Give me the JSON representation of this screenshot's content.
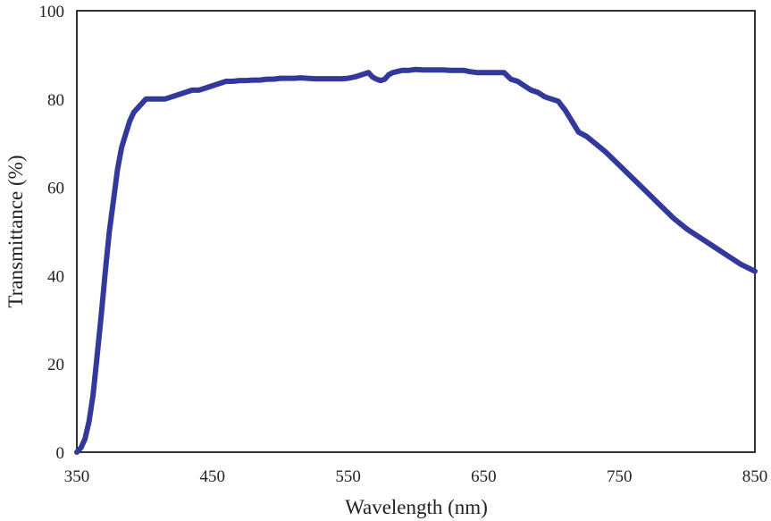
{
  "chart_data": {
    "type": "line",
    "title": "",
    "xlabel": "Wavelength  (nm)",
    "ylabel": "Transmittance  (%)",
    "xlim": [
      350,
      850
    ],
    "ylim": [
      0,
      100
    ],
    "xticks": [
      350,
      450,
      550,
      650,
      750,
      850
    ],
    "yticks": [
      0,
      20,
      40,
      60,
      80,
      100
    ],
    "grid": false,
    "legend": "none",
    "series": [
      {
        "color": "#33399a",
        "x": [
          350,
          353,
          356,
          359,
          362,
          365,
          368,
          371,
          374,
          377,
          380,
          383,
          386,
          389,
          392,
          395,
          398,
          401,
          404,
          407,
          410,
          415,
          420,
          425,
          430,
          435,
          440,
          445,
          450,
          455,
          460,
          465,
          470,
          475,
          480,
          485,
          490,
          495,
          500,
          505,
          510,
          515,
          520,
          525,
          530,
          535,
          540,
          545,
          550,
          555,
          560,
          565,
          568,
          571,
          574,
          577,
          580,
          583,
          586,
          590,
          595,
          600,
          605,
          610,
          615,
          620,
          625,
          630,
          635,
          640,
          645,
          650,
          655,
          660,
          665,
          670,
          675,
          680,
          685,
          690,
          695,
          700,
          705,
          710,
          715,
          720,
          723,
          726,
          730,
          740,
          750,
          760,
          770,
          780,
          790,
          800,
          810,
          820,
          830,
          840,
          850
        ],
        "y": [
          0,
          1,
          3,
          7,
          13,
          22,
          31,
          41,
          50,
          57,
          64,
          69,
          72,
          75,
          77,
          78,
          79,
          80,
          80,
          80,
          80,
          80,
          80.5,
          81,
          81.5,
          82,
          82,
          82.5,
          83,
          83.5,
          84,
          84,
          84.2,
          84.2,
          84.3,
          84.3,
          84.5,
          84.5,
          84.7,
          84.7,
          84.7,
          84.8,
          84.7,
          84.6,
          84.6,
          84.6,
          84.6,
          84.6,
          84.7,
          85,
          85.5,
          86,
          85,
          84.5,
          84.2,
          84.5,
          85.5,
          86,
          86.2,
          86.5,
          86.5,
          86.7,
          86.6,
          86.6,
          86.6,
          86.6,
          86.5,
          86.5,
          86.5,
          86.2,
          86,
          86,
          86,
          86,
          86,
          84.5,
          84,
          83,
          82,
          81.5,
          80.5,
          80,
          79.5,
          77.5,
          75,
          72.5,
          72,
          71.5,
          70.5,
          68,
          65,
          62,
          59,
          56,
          53,
          50.5,
          48.5,
          46.5,
          44.5,
          42.5,
          41
        ]
      }
    ]
  }
}
